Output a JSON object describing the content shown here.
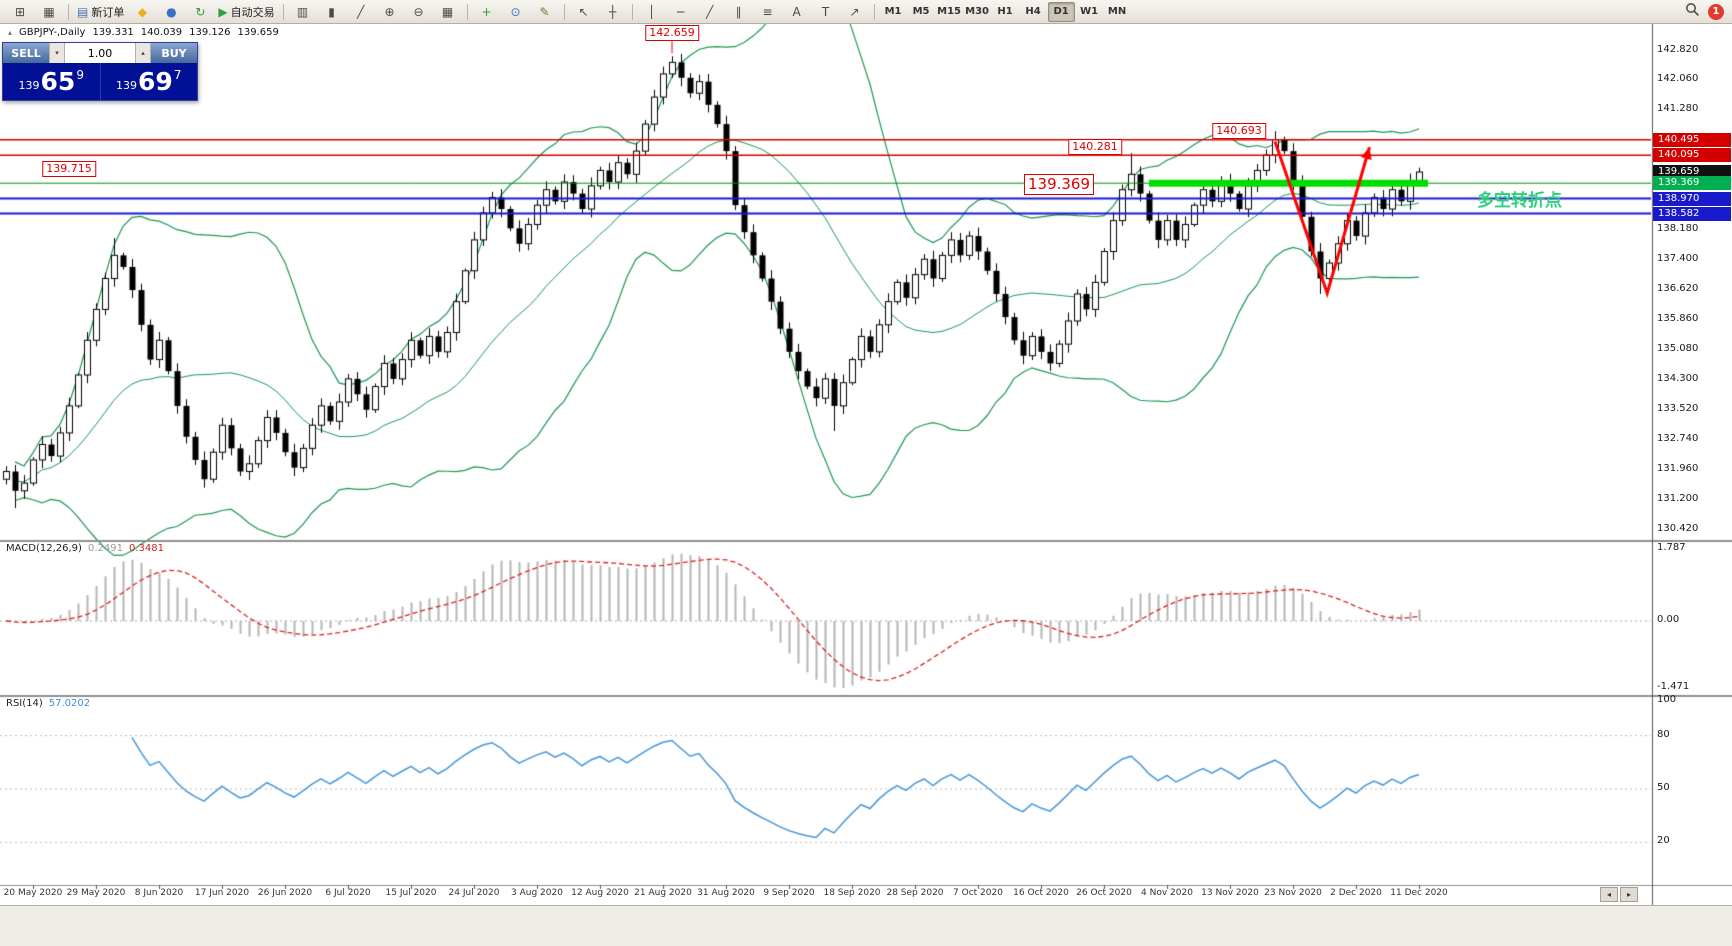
{
  "toolbar": {
    "groups": [
      {
        "name": "file",
        "items": [
          {
            "name": "new-chart",
            "icon": "⊞"
          },
          {
            "name": "profiles",
            "icon": "▦"
          }
        ]
      },
      {
        "name": "trade",
        "items": [
          {
            "name": "new-order",
            "icon": "▤",
            "label": "新订单",
            "color": "#4a6fb0"
          },
          {
            "name": "metaeditor",
            "icon": "◆",
            "color": "#e8b019"
          },
          {
            "name": "community",
            "icon": "●",
            "color": "#3a6fc4"
          },
          {
            "name": "refresh",
            "icon": "↻",
            "color": "#2f9e44"
          },
          {
            "name": "autotrading",
            "icon": "▶",
            "label": "自动交易",
            "color": "#2f9e44"
          }
        ]
      },
      {
        "name": "chart-type",
        "items": [
          {
            "name": "bar-chart",
            "icon": "▥"
          },
          {
            "name": "candlestick-chart",
            "icon": "▮"
          },
          {
            "name": "line-chart",
            "icon": "╱"
          },
          {
            "name": "zoom-in",
            "icon": "⊕"
          },
          {
            "name": "zoom-out",
            "icon": "⊖"
          },
          {
            "name": "tile-windows",
            "icon": "▦"
          }
        ]
      },
      {
        "name": "chart-extra",
        "items": [
          {
            "name": "indicators",
            "icon": "+",
            "color": "#2f9e44"
          },
          {
            "name": "cycles",
            "icon": "⊙",
            "color": "#3a6fc4"
          },
          {
            "name": "chart-properties",
            "icon": "✎",
            "color": "#8a6d3b"
          }
        ]
      },
      {
        "name": "pointer",
        "items": [
          {
            "name": "cursor",
            "icon": "↖"
          },
          {
            "name": "crosshair",
            "icon": "┼"
          }
        ]
      },
      {
        "name": "objects",
        "items": [
          {
            "name": "vertical-line",
            "icon": "│"
          },
          {
            "name": "horizontal-line",
            "icon": "─"
          },
          {
            "name": "trendline",
            "icon": "╱"
          },
          {
            "name": "equidistant-channel",
            "icon": "∥"
          },
          {
            "name": "fibonacci",
            "icon": "≡"
          },
          {
            "name": "text",
            "icon": "A"
          },
          {
            "name": "text-label",
            "icon": "T"
          },
          {
            "name": "arrows",
            "icon": "↗"
          }
        ]
      }
    ],
    "timeframes": [
      "M1",
      "M5",
      "M15",
      "M30",
      "H1",
      "H4",
      "D1",
      "W1",
      "MN"
    ],
    "active_timeframe": "D1",
    "notification_count": "1"
  },
  "symbol_info": {
    "direction_icon": "▴",
    "symbol": "GBPJPY-,Daily",
    "open": "139.331",
    "high": "140.039",
    "low": "139.126",
    "close": "139.659"
  },
  "trade_panel": {
    "sell_label": "SELL",
    "buy_label": "BUY",
    "volume": "1.00",
    "spinner_down": "▾",
    "spinner_up": "▴",
    "sell_price": {
      "prefix": "139",
      "big": "65",
      "sup": "9"
    },
    "buy_price": {
      "prefix": "139",
      "big": "69",
      "sup": "7"
    }
  },
  "macd": {
    "label": "MACD(12,26,9)",
    "value_main": "0.2491",
    "value_signal": "0.3481",
    "params": {
      "fast": 12,
      "slow": 26,
      "signal": 9
    },
    "axis_labels": [
      "1.787",
      "0.00",
      "-1.471"
    ]
  },
  "rsi": {
    "label": "RSI(14)",
    "value": "57.0202",
    "period": 14,
    "axis_labels": [
      "100",
      "80",
      "50",
      "20"
    ]
  },
  "price_axis": {
    "labels": [
      "142.820",
      "142.060",
      "141.280",
      "138.180",
      "137.400",
      "136.620",
      "135.860",
      "135.080",
      "134.300",
      "133.520",
      "132.740",
      "131.960",
      "131.200",
      "130.420"
    ],
    "badges": [
      {
        "text": "140.495",
        "type": "resistance-1",
        "bg": "#d40000",
        "fg": "#ffffff"
      },
      {
        "text": "140.095",
        "type": "resistance-2",
        "bg": "#d40000",
        "fg": "#ffffff"
      },
      {
        "text": "139.659",
        "type": "last-price",
        "bg": "#111111",
        "fg": "#ffffff"
      },
      {
        "text": "139.369",
        "type": "pivot",
        "bg": "#00b050",
        "fg": "#ffffff"
      },
      {
        "text": "138.970",
        "type": "support-1",
        "bg": "#1a1acd",
        "fg": "#ffffff"
      },
      {
        "text": "138.582",
        "type": "support-2",
        "bg": "#1a1acd",
        "fg": "#ffffff"
      }
    ]
  },
  "time_axis": {
    "dates": [
      "20 May 2020",
      "29 May 2020",
      "8 Jun 2020",
      "17 Jun 2020",
      "26 Jun 2020",
      "6 Jul 2020",
      "15 Jul 2020",
      "24 Jul 2020",
      "3 Aug 2020",
      "12 Aug 2020",
      "21 Aug 2020",
      "31 Aug 2020",
      "9 Sep 2020",
      "18 Sep 2020",
      "28 Sep 2020",
      "7 Oct 2020",
      "16 Oct 2020",
      "26 Oct 2020",
      "4 Nov 2020",
      "13 Nov 2020",
      "23 Nov 2020",
      "2 Dec 2020",
      "11 Dec 2020"
    ]
  },
  "nav": {
    "left_icon": "◂",
    "right_icon": "▸"
  },
  "annotations": {
    "callouts": [
      {
        "text": "142.659",
        "price": 142.659,
        "box_candle": 74,
        "above": true
      },
      {
        "text": "139.715",
        "price": 139.715,
        "box_candle": 7
      },
      {
        "text": "140.281",
        "price": 140.281,
        "box_candle": 121
      },
      {
        "text": "140.693",
        "price": 140.693,
        "box_candle": 137
      },
      {
        "text": "139.369",
        "price": 139.369,
        "box_candle": 117,
        "large": true
      }
    ],
    "hlines": [
      {
        "price": 140.495,
        "color": "#d40000",
        "width": 1.5
      },
      {
        "price": 140.095,
        "color": "#d40000",
        "width": 1.5
      },
      {
        "price": 139.369,
        "color": "#008f00",
        "width": 1
      },
      {
        "price": 138.97,
        "color": "#1a1acd",
        "width": 2
      },
      {
        "price": 138.582,
        "color": "#1a1acd",
        "width": 2
      }
    ],
    "thick_segment": {
      "price": 139.369,
      "from_candle": 127,
      "to_candle": 158,
      "color": "#00dd00",
      "thickness": 7
    },
    "arrow": {
      "color": "#ff0000",
      "width": 3,
      "points_pc": [
        [
          141,
          140.45
        ],
        [
          146.8,
          136.52
        ],
        [
          151.5,
          140.3
        ]
      ]
    },
    "note": {
      "text": "多空转折点",
      "color": "#2fcf7f",
      "price": 139.0
    }
  },
  "chart_data": {
    "type": "candlestick",
    "symbol": "GBPJPY-",
    "timeframe": "Daily",
    "ohlc_display": {
      "open": 139.331,
      "high": 140.039,
      "low": 139.126,
      "close": 139.659
    },
    "visible_price_range": [
      130.42,
      142.82
    ],
    "first_open": 131.7,
    "closes": [
      131.9,
      131.4,
      131.6,
      132.2,
      132.6,
      132.3,
      132.9,
      133.6,
      134.4,
      135.3,
      136.1,
      136.9,
      137.5,
      137.2,
      136.6,
      135.7,
      134.8,
      135.3,
      134.5,
      133.6,
      132.8,
      132.2,
      131.7,
      132.4,
      133.1,
      132.5,
      131.9,
      132.1,
      132.7,
      133.3,
      132.9,
      132.4,
      132.0,
      132.5,
      133.1,
      133.6,
      133.2,
      133.7,
      134.3,
      133.9,
      133.5,
      134.1,
      134.7,
      134.3,
      134.8,
      135.3,
      134.9,
      135.4,
      135.0,
      135.5,
      136.3,
      137.1,
      137.9,
      138.6,
      139.0,
      138.7,
      138.2,
      137.8,
      138.3,
      138.8,
      139.2,
      138.9,
      139.4,
      139.1,
      138.7,
      139.3,
      139.7,
      139.4,
      139.9,
      139.6,
      140.2,
      140.9,
      141.6,
      142.2,
      142.5,
      142.1,
      141.7,
      142.0,
      141.4,
      140.9,
      140.2,
      138.8,
      138.1,
      137.5,
      136.9,
      136.3,
      135.6,
      135.0,
      134.5,
      134.1,
      133.8,
      134.3,
      133.6,
      134.2,
      134.8,
      135.4,
      135.0,
      135.7,
      136.3,
      136.8,
      136.4,
      137.0,
      137.4,
      136.9,
      137.5,
      137.9,
      137.5,
      138.0,
      137.6,
      137.1,
      136.5,
      135.9,
      135.3,
      134.9,
      135.4,
      135.0,
      134.7,
      135.2,
      135.8,
      136.5,
      136.1,
      136.8,
      137.6,
      138.4,
      139.2,
      139.6,
      139.1,
      138.4,
      137.9,
      138.4,
      137.9,
      138.3,
      138.8,
      139.2,
      138.9,
      139.4,
      139.1,
      138.7,
      139.3,
      139.7,
      140.1,
      140.5,
      140.2,
      139.4,
      138.5,
      137.6,
      136.9,
      137.3,
      137.8,
      138.4,
      138.0,
      138.6,
      139.0,
      138.7,
      139.2,
      138.9,
      139.4,
      139.659
    ],
    "high_overrides": {
      "12": 137.95,
      "74": 142.659,
      "125": 140.15,
      "141": 140.693
    },
    "low_overrides": {
      "1": 130.95,
      "22": 131.55,
      "92": 132.95,
      "146": 136.5
    },
    "bollinger": {
      "period": 20,
      "deviation": 2,
      "color": "#1a9850"
    },
    "macd_colors": {
      "histogram": "#b5b5b5",
      "signal": "#dd2222"
    },
    "rsi_color": "#4596d8"
  }
}
